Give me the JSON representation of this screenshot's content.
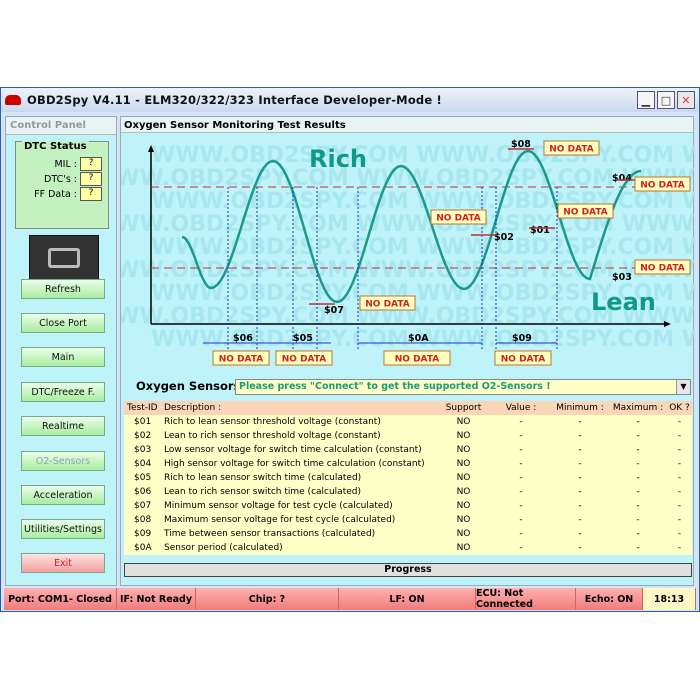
{
  "window": {
    "title": "OBD2Spy V4.11 - ELM320/322/323 Interface Developer-Mode !",
    "controls": [
      "minimize",
      "maximize",
      "close"
    ]
  },
  "left_panel": {
    "title": "Control Panel",
    "dtc_status": {
      "title": "DTC Status",
      "rows": [
        {
          "label": "MIL :",
          "value": "?"
        },
        {
          "label": "DTC's :",
          "value": "?"
        },
        {
          "label": "FF Data :",
          "value": "?"
        }
      ]
    },
    "buttons": [
      {
        "label": "Refresh"
      },
      {
        "label": "Close Port"
      },
      {
        "label": "Main"
      },
      {
        "label": "DTC/Freeze F."
      },
      {
        "label": "Realtime"
      },
      {
        "label": "O2-Sensors",
        "disabled": true
      },
      {
        "label": "Acceleration"
      },
      {
        "label": "Utilities/Settings"
      },
      {
        "label": "Exit"
      }
    ]
  },
  "main": {
    "title": "Oxygen Sensor Monitoring Test Results",
    "diagram": {
      "rich_label": "Rich",
      "lean_label": "Lean",
      "watermark": "WWW.OBD2SPY.COM",
      "no_data": "NO DATA",
      "markers": [
        "$08",
        "$04",
        "$02",
        "$01",
        "$03",
        "$07"
      ],
      "intervals": [
        "$06",
        "$05",
        "$0A",
        "$09"
      ],
      "wave_color": "#1a9a8a",
      "threshold_color": "#c03030"
    },
    "o2_label": "Oxygen Sensors:",
    "o2_select": "Please press \"Connect\" to get the supported O2-Sensors !",
    "table": {
      "headers": [
        "Test-ID",
        "Description :",
        "Support",
        "Value :",
        "Minimum :",
        "Maximum :",
        "OK ?"
      ],
      "rows": [
        [
          "$01",
          "Rich to lean sensor threshold voltage (constant)",
          "NO",
          "-",
          "-",
          "-",
          "-"
        ],
        [
          "$02",
          "Lean to rich sensor threshold voltage (constant)",
          "NO",
          "-",
          "-",
          "-",
          "-"
        ],
        [
          "$03",
          "Low sensor voltage for switch time calculation (constant)",
          "NO",
          "-",
          "-",
          "-",
          "-"
        ],
        [
          "$04",
          "High sensor voltage for switch time calculation (constant)",
          "NO",
          "-",
          "-",
          "-",
          "-"
        ],
        [
          "$05",
          "Rich to lean sensor switch time (calculated)",
          "NO",
          "-",
          "-",
          "-",
          "-"
        ],
        [
          "$06",
          "Lean to rich sensor switch time (calculated)",
          "NO",
          "-",
          "-",
          "-",
          "-"
        ],
        [
          "$07",
          "Minimum sensor voltage for test cycle  (calculated)",
          "NO",
          "-",
          "-",
          "-",
          "-"
        ],
        [
          "$08",
          "Maximum sensor voltage for test cycle  (calculated)",
          "NO",
          "-",
          "-",
          "-",
          "-"
        ],
        [
          "$09",
          "Time between sensor transactions (calculated)",
          "NO",
          "-",
          "-",
          "-",
          "-"
        ],
        [
          "$0A",
          "Sensor period (calculated)",
          "NO",
          "-",
          "-",
          "-",
          "-"
        ]
      ]
    },
    "progress_label": "Progress"
  },
  "status_bar": [
    "Port: COM1- Closed",
    "IF: Not Ready",
    "Chip: ?",
    "LF: ON",
    "ECU: Not Connected",
    "Echo: ON",
    "18:13"
  ]
}
